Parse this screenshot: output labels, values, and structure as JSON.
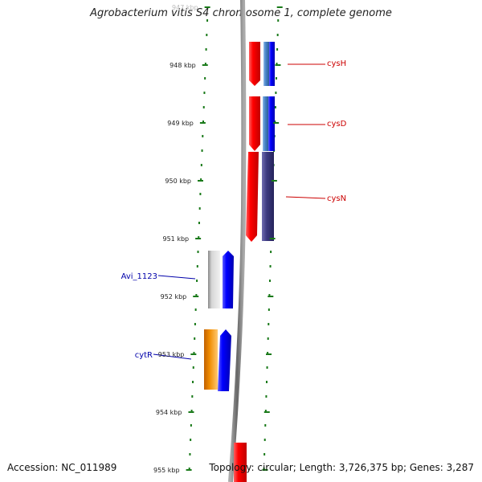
{
  "title": "Agrobacterium vitis S4 chromosome 1, complete genome",
  "accession": "Accession: NC_011989",
  "topology": "Topology: circular; Length: 3,726,375 bp; Genes: 3,287",
  "ticks": [
    {
      "label": "947 kbp",
      "faded": true
    },
    {
      "label": "948 kbp"
    },
    {
      "label": "949 kbp"
    },
    {
      "label": "950 kbp"
    },
    {
      "label": "951 kbp"
    },
    {
      "label": "952 kbp"
    },
    {
      "label": "953 kbp"
    },
    {
      "label": "954 kbp"
    },
    {
      "label": "955 kbp"
    }
  ],
  "genes": [
    {
      "name": "cysH",
      "color": "#cc0000"
    },
    {
      "name": "cysD",
      "color": "#cc0000"
    },
    {
      "name": "cysN",
      "color": "#cc0000"
    },
    {
      "name": "Avi_1123",
      "color": "#0000aa"
    },
    {
      "name": "cytR",
      "color": "#0000aa"
    }
  ],
  "colors": {
    "red": "#ff0000",
    "blue": "#0000ff",
    "steel": "#4a86c8",
    "indigo": "#3c3a80",
    "gray": "#b0b0b0",
    "orange": "#f08c00",
    "tick": "#1a7a1a",
    "backbone": "#808080"
  }
}
